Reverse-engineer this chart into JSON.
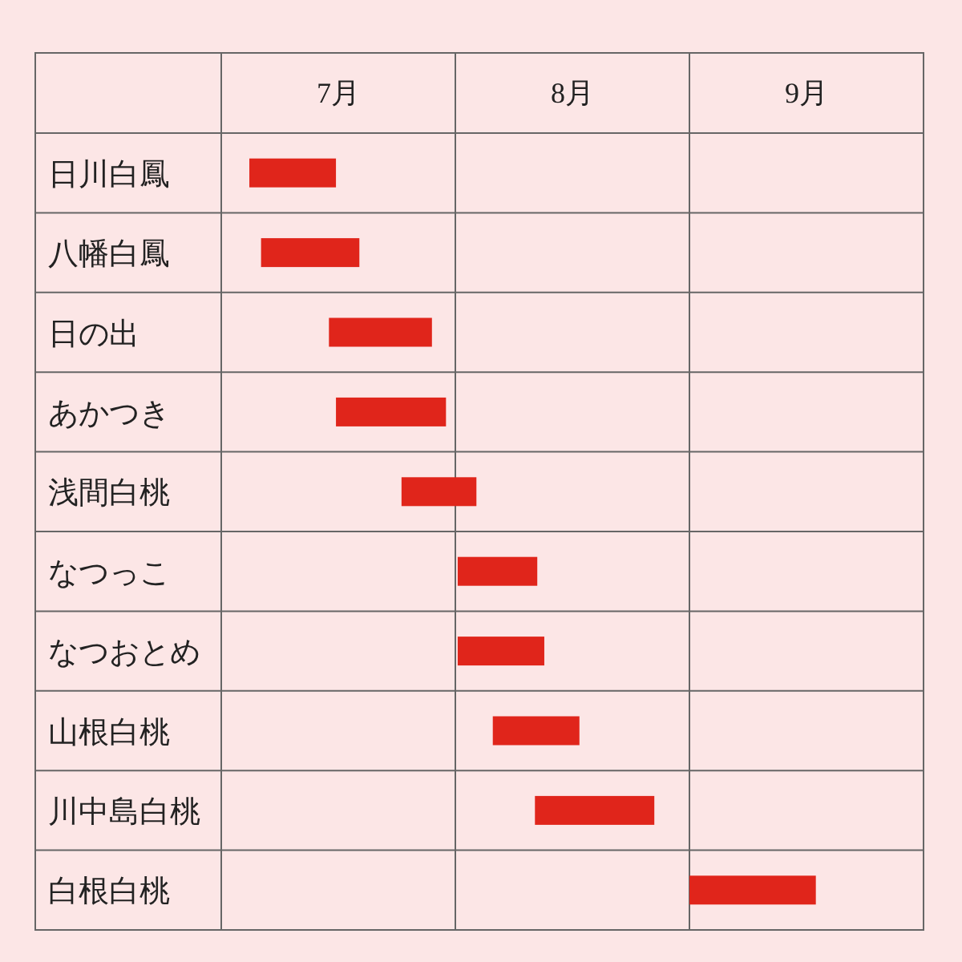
{
  "chart_data": {
    "type": "bar",
    "orientation": "horizontal",
    "categories": [
      "日川白鳳",
      "八幡白鳳",
      "日の出",
      "あかつき",
      "浅間白桃",
      "なつっこ",
      "なつおとめ",
      "山根白桃",
      "川中島白桃",
      "白根白桃"
    ],
    "base": [
      7.12,
      7.17,
      7.46,
      7.49,
      7.77,
      8.01,
      8.01,
      8.16,
      8.34,
      9.0
    ],
    "values": [
      0.37,
      0.42,
      0.44,
      0.47,
      0.32,
      0.34,
      0.37,
      0.37,
      0.51,
      0.54
    ],
    "color": "#e0251b",
    "xlim": [
      7,
      10
    ],
    "xticks": [
      {
        "value": 7,
        "label": null
      },
      {
        "value": 7.5,
        "label": "7月"
      },
      {
        "value": 8,
        "label": null
      },
      {
        "value": 8.5,
        "label": "8月"
      },
      {
        "value": 9,
        "label": null
      },
      {
        "value": 9.5,
        "label": "9月"
      },
      {
        "value": 10,
        "label": null
      }
    ],
    "grid": true
  }
}
